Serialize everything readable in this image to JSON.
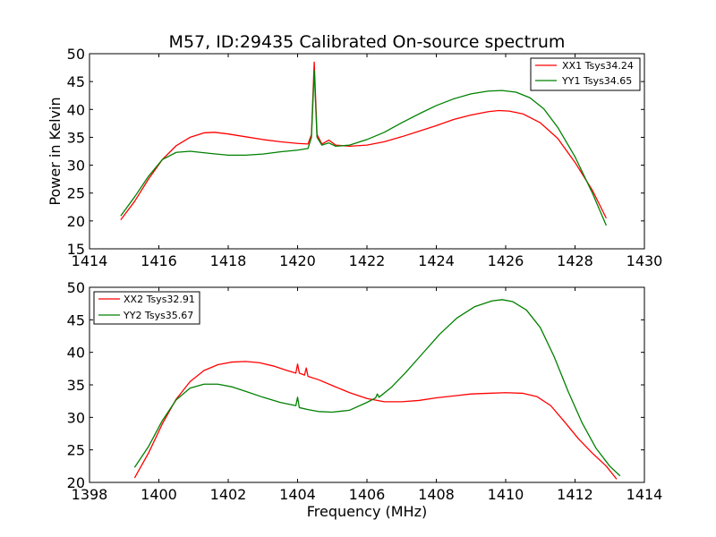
{
  "chart_data": [
    {
      "type": "line",
      "title": "M57, ID:29435 Calibrated On-source spectrum",
      "xlabel": "",
      "ylabel": "Power in Kelvin",
      "xlim": [
        1414,
        1430
      ],
      "ylim": [
        15,
        50
      ],
      "xticks": [
        1414,
        1416,
        1418,
        1420,
        1422,
        1424,
        1426,
        1428,
        1430
      ],
      "yticks": [
        15,
        20,
        25,
        30,
        35,
        40,
        45,
        50
      ],
      "legend_position": "top-right",
      "grid": false,
      "series": [
        {
          "name": "XX1 Tsys34.24",
          "color": "#ff0000",
          "points": [
            [
              1414.9,
              20.2
            ],
            [
              1415.3,
              23.5
            ],
            [
              1415.7,
              27.5
            ],
            [
              1416.1,
              31.0
            ],
            [
              1416.5,
              33.5
            ],
            [
              1416.9,
              35.0
            ],
            [
              1417.3,
              35.8
            ],
            [
              1417.6,
              35.9
            ],
            [
              1418.0,
              35.6
            ],
            [
              1418.5,
              35.1
            ],
            [
              1419.0,
              34.6
            ],
            [
              1419.5,
              34.2
            ],
            [
              1420.0,
              33.9
            ],
            [
              1420.3,
              33.8
            ],
            [
              1420.4,
              35.5
            ],
            [
              1420.48,
              48.5
            ],
            [
              1420.56,
              35.5
            ],
            [
              1420.7,
              33.8
            ],
            [
              1420.9,
              34.5
            ],
            [
              1421.1,
              33.6
            ],
            [
              1421.5,
              33.4
            ],
            [
              1422.0,
              33.6
            ],
            [
              1422.5,
              34.2
            ],
            [
              1423.0,
              35.1
            ],
            [
              1423.5,
              36.1
            ],
            [
              1424.0,
              37.1
            ],
            [
              1424.5,
              38.2
            ],
            [
              1425.0,
              39.0
            ],
            [
              1425.5,
              39.6
            ],
            [
              1425.8,
              39.8
            ],
            [
              1426.1,
              39.7
            ],
            [
              1426.5,
              39.2
            ],
            [
              1427.0,
              37.6
            ],
            [
              1427.5,
              34.8
            ],
            [
              1428.0,
              30.5
            ],
            [
              1428.5,
              25.5
            ],
            [
              1428.9,
              20.5
            ]
          ]
        },
        {
          "name": "YY1 Tsys34.65",
          "color": "#008000",
          "points": [
            [
              1414.9,
              20.9
            ],
            [
              1415.3,
              24.3
            ],
            [
              1415.7,
              28.0
            ],
            [
              1416.1,
              31.0
            ],
            [
              1416.5,
              32.3
            ],
            [
              1416.9,
              32.5
            ],
            [
              1417.5,
              32.1
            ],
            [
              1418.0,
              31.8
            ],
            [
              1418.5,
              31.8
            ],
            [
              1419.0,
              32.0
            ],
            [
              1419.5,
              32.4
            ],
            [
              1420.0,
              32.7
            ],
            [
              1420.3,
              33.0
            ],
            [
              1420.4,
              35.0
            ],
            [
              1420.48,
              47.0
            ],
            [
              1420.56,
              35.0
            ],
            [
              1420.7,
              33.6
            ],
            [
              1420.9,
              34.0
            ],
            [
              1421.1,
              33.4
            ],
            [
              1421.5,
              33.6
            ],
            [
              1422.0,
              34.6
            ],
            [
              1422.5,
              35.9
            ],
            [
              1423.0,
              37.6
            ],
            [
              1423.5,
              39.2
            ],
            [
              1424.0,
              40.7
            ],
            [
              1424.5,
              41.9
            ],
            [
              1425.0,
              42.8
            ],
            [
              1425.5,
              43.3
            ],
            [
              1425.9,
              43.4
            ],
            [
              1426.3,
              43.1
            ],
            [
              1426.7,
              42.1
            ],
            [
              1427.1,
              40.1
            ],
            [
              1427.5,
              36.8
            ],
            [
              1428.0,
              31.5
            ],
            [
              1428.5,
              25.0
            ],
            [
              1428.9,
              19.2
            ]
          ]
        }
      ]
    },
    {
      "type": "line",
      "title": "",
      "xlabel": "Frequency (MHz)",
      "ylabel": "",
      "xlim": [
        1398,
        1414
      ],
      "ylim": [
        20,
        50
      ],
      "xticks": [
        1398,
        1400,
        1402,
        1404,
        1406,
        1408,
        1410,
        1412,
        1414
      ],
      "yticks": [
        20,
        25,
        30,
        35,
        40,
        45,
        50
      ],
      "legend_position": "top-left",
      "grid": false,
      "series": [
        {
          "name": "XX2 Tsys32.91",
          "color": "#ff0000",
          "points": [
            [
              1399.3,
              20.7
            ],
            [
              1399.7,
              24.5
            ],
            [
              1400.1,
              29.0
            ],
            [
              1400.5,
              32.8
            ],
            [
              1400.9,
              35.5
            ],
            [
              1401.3,
              37.2
            ],
            [
              1401.7,
              38.1
            ],
            [
              1402.1,
              38.5
            ],
            [
              1402.5,
              38.6
            ],
            [
              1402.9,
              38.4
            ],
            [
              1403.3,
              37.9
            ],
            [
              1403.7,
              37.2
            ],
            [
              1403.95,
              36.8
            ],
            [
              1404.0,
              38.2
            ],
            [
              1404.05,
              36.8
            ],
            [
              1404.2,
              36.5
            ],
            [
              1404.25,
              37.6
            ],
            [
              1404.3,
              36.3
            ],
            [
              1404.6,
              35.8
            ],
            [
              1405.0,
              34.9
            ],
            [
              1405.5,
              33.8
            ],
            [
              1406.0,
              32.9
            ],
            [
              1406.5,
              32.4
            ],
            [
              1407.0,
              32.4
            ],
            [
              1407.5,
              32.6
            ],
            [
              1408.0,
              33.0
            ],
            [
              1408.5,
              33.3
            ],
            [
              1409.0,
              33.6
            ],
            [
              1409.5,
              33.7
            ],
            [
              1410.0,
              33.8
            ],
            [
              1410.5,
              33.7
            ],
            [
              1410.9,
              33.2
            ],
            [
              1411.3,
              31.8
            ],
            [
              1411.7,
              29.3
            ],
            [
              1412.1,
              26.7
            ],
            [
              1412.5,
              24.5
            ],
            [
              1412.9,
              22.5
            ],
            [
              1413.2,
              20.5
            ]
          ]
        },
        {
          "name": "YY2 Tsys35.67",
          "color": "#008000",
          "points": [
            [
              1399.3,
              22.3
            ],
            [
              1399.7,
              25.5
            ],
            [
              1400.1,
              29.5
            ],
            [
              1400.5,
              32.7
            ],
            [
              1400.9,
              34.5
            ],
            [
              1401.3,
              35.1
            ],
            [
              1401.7,
              35.1
            ],
            [
              1402.1,
              34.7
            ],
            [
              1402.5,
              34.0
            ],
            [
              1403.0,
              33.1
            ],
            [
              1403.5,
              32.3
            ],
            [
              1403.95,
              31.8
            ],
            [
              1404.0,
              33.1
            ],
            [
              1404.05,
              31.5
            ],
            [
              1404.3,
              31.2
            ],
            [
              1404.6,
              30.9
            ],
            [
              1405.0,
              30.8
            ],
            [
              1405.5,
              31.1
            ],
            [
              1406.0,
              32.3
            ],
            [
              1406.25,
              33.0
            ],
            [
              1406.3,
              33.6
            ],
            [
              1406.35,
              33.1
            ],
            [
              1406.7,
              34.6
            ],
            [
              1407.1,
              36.8
            ],
            [
              1407.6,
              39.8
            ],
            [
              1408.1,
              42.8
            ],
            [
              1408.6,
              45.3
            ],
            [
              1409.1,
              47.0
            ],
            [
              1409.6,
              47.9
            ],
            [
              1409.9,
              48.1
            ],
            [
              1410.2,
              47.8
            ],
            [
              1410.6,
              46.5
            ],
            [
              1411.0,
              43.8
            ],
            [
              1411.4,
              39.3
            ],
            [
              1411.8,
              34.0
            ],
            [
              1412.2,
              29.2
            ],
            [
              1412.6,
              25.3
            ],
            [
              1413.0,
              22.5
            ],
            [
              1413.3,
              21.0
            ]
          ]
        }
      ]
    }
  ]
}
